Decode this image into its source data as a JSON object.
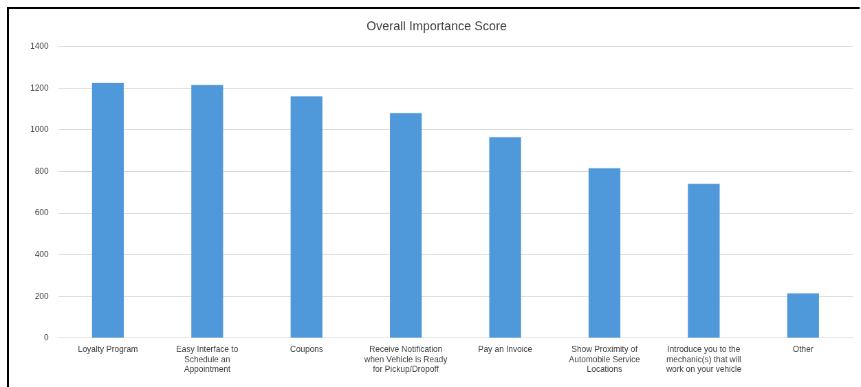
{
  "chart_data": {
    "type": "bar",
    "title": "Overall Importance Score",
    "categories": [
      "Loyalty Program",
      "Easy Interface to Schedule an Appointment",
      "Coupons",
      "Receive Notification when Vehicle is Ready for Pickup/Dropoff",
      "Pay an Invoice",
      "Show Proximity of Automobile Service Locations",
      "Introduce you to the mechanic(s) that will work on your vehicle",
      "Other"
    ],
    "values": [
      1225,
      1215,
      1160,
      1080,
      965,
      815,
      740,
      215
    ],
    "color": "#4f98d9",
    "ylim": [
      0,
      1400
    ],
    "yticks": [
      0,
      200,
      400,
      600,
      800,
      1000,
      1200,
      1400
    ],
    "grid": "y",
    "legend": false
  }
}
